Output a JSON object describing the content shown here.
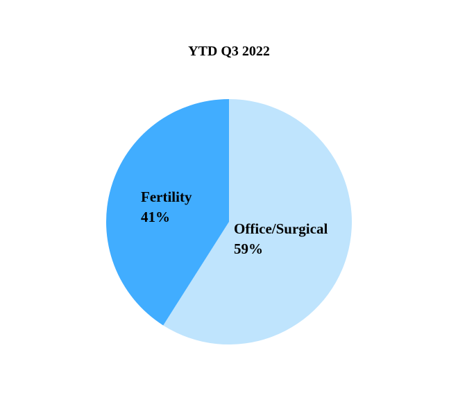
{
  "chart_data": {
    "type": "pie",
    "title": "YTD Q3 2022",
    "start": "top",
    "direction": "clockwise",
    "slices": [
      {
        "label": "Office/Surgical",
        "value": 59,
        "display": "59%",
        "color": "#bfe4fd"
      },
      {
        "label": "Fertility",
        "value": 41,
        "display": "41%",
        "color": "#41adff"
      }
    ],
    "legend": "none"
  }
}
